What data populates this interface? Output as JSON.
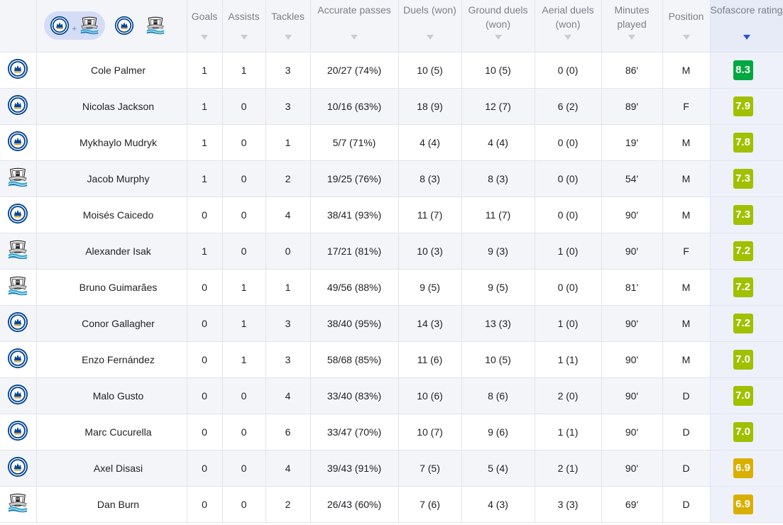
{
  "header": {
    "columns": [
      {
        "key": "goals",
        "label": "Goals"
      },
      {
        "key": "assists",
        "label": "Assists"
      },
      {
        "key": "tackles",
        "label": "Tackles"
      },
      {
        "key": "accurate_passes",
        "label": "Accurate passes"
      },
      {
        "key": "duels_won",
        "label": "Duels (won)"
      },
      {
        "key": "ground_duels_won",
        "label": "Ground duels (won)"
      },
      {
        "key": "aerial_duels_won",
        "label": "Aerial duels (won)"
      },
      {
        "key": "minutes_played",
        "label": "Minutes played"
      },
      {
        "key": "position",
        "label": "Position"
      },
      {
        "key": "rating",
        "label": "Sofascore rating"
      }
    ],
    "filter": {
      "plus": "+"
    }
  },
  "crests": {
    "chelsea": {
      "icon": "chelsea-crest-icon",
      "primary": "#034694"
    },
    "newcastle": {
      "icon": "newcastle-crest-icon",
      "primary": "#241f20"
    }
  },
  "rating_colors": {
    "excellent": "#00a83f",
    "very_good": "#a0c000",
    "good": "#d9af00"
  },
  "players": [
    {
      "team": "chelsea",
      "name": "Cole Palmer",
      "goals": "1",
      "assists": "1",
      "tackles": "3",
      "accurate_passes": "20/27 (74%)",
      "duels_won": "10 (5)",
      "ground_duels_won": "10 (5)",
      "aerial_duels_won": "0 (0)",
      "minutes_played": "86'",
      "position": "M",
      "rating": "8.3",
      "rating_level": "excellent"
    },
    {
      "team": "chelsea",
      "name": "Nicolas Jackson",
      "goals": "1",
      "assists": "0",
      "tackles": "3",
      "accurate_passes": "10/16 (63%)",
      "duels_won": "18 (9)",
      "ground_duels_won": "12 (7)",
      "aerial_duels_won": "6 (2)",
      "minutes_played": "89'",
      "position": "F",
      "rating": "7.9",
      "rating_level": "very_good"
    },
    {
      "team": "chelsea",
      "name": "Mykhaylo Mudryk",
      "goals": "1",
      "assists": "0",
      "tackles": "1",
      "accurate_passes": "5/7 (71%)",
      "duels_won": "4 (4)",
      "ground_duels_won": "4 (4)",
      "aerial_duels_won": "0 (0)",
      "minutes_played": "19'",
      "position": "M",
      "rating": "7.8",
      "rating_level": "very_good"
    },
    {
      "team": "newcastle",
      "name": "Jacob Murphy",
      "goals": "1",
      "assists": "0",
      "tackles": "2",
      "accurate_passes": "19/25 (76%)",
      "duels_won": "8 (3)",
      "ground_duels_won": "8 (3)",
      "aerial_duels_won": "0 (0)",
      "minutes_played": "54'",
      "position": "M",
      "rating": "7.3",
      "rating_level": "very_good"
    },
    {
      "team": "chelsea",
      "name": "Moisés Caicedo",
      "goals": "0",
      "assists": "0",
      "tackles": "4",
      "accurate_passes": "38/41 (93%)",
      "duels_won": "11 (7)",
      "ground_duels_won": "11 (7)",
      "aerial_duels_won": "0 (0)",
      "minutes_played": "90'",
      "position": "M",
      "rating": "7.3",
      "rating_level": "very_good"
    },
    {
      "team": "newcastle",
      "name": "Alexander Isak",
      "goals": "1",
      "assists": "0",
      "tackles": "0",
      "accurate_passes": "17/21 (81%)",
      "duels_won": "10 (3)",
      "ground_duels_won": "9 (3)",
      "aerial_duels_won": "1 (0)",
      "minutes_played": "90'",
      "position": "F",
      "rating": "7.2",
      "rating_level": "very_good"
    },
    {
      "team": "newcastle",
      "name": "Bruno Guimarães",
      "goals": "0",
      "assists": "1",
      "tackles": "1",
      "accurate_passes": "49/56 (88%)",
      "duels_won": "9 (5)",
      "ground_duels_won": "9 (5)",
      "aerial_duels_won": "0 (0)",
      "minutes_played": "81'",
      "position": "M",
      "rating": "7.2",
      "rating_level": "very_good"
    },
    {
      "team": "chelsea",
      "name": "Conor Gallagher",
      "goals": "0",
      "assists": "1",
      "tackles": "3",
      "accurate_passes": "38/40 (95%)",
      "duels_won": "14 (3)",
      "ground_duels_won": "13 (3)",
      "aerial_duels_won": "1 (0)",
      "minutes_played": "90'",
      "position": "M",
      "rating": "7.2",
      "rating_level": "very_good"
    },
    {
      "team": "chelsea",
      "name": "Enzo Fernández",
      "goals": "0",
      "assists": "1",
      "tackles": "3",
      "accurate_passes": "58/68 (85%)",
      "duels_won": "11 (6)",
      "ground_duels_won": "10 (5)",
      "aerial_duels_won": "1 (1)",
      "minutes_played": "90'",
      "position": "M",
      "rating": "7.0",
      "rating_level": "very_good"
    },
    {
      "team": "chelsea",
      "name": "Malo Gusto",
      "goals": "0",
      "assists": "0",
      "tackles": "4",
      "accurate_passes": "33/40 (83%)",
      "duels_won": "10 (6)",
      "ground_duels_won": "8 (6)",
      "aerial_duels_won": "2 (0)",
      "minutes_played": "90'",
      "position": "D",
      "rating": "7.0",
      "rating_level": "very_good"
    },
    {
      "team": "chelsea",
      "name": "Marc Cucurella",
      "goals": "0",
      "assists": "0",
      "tackles": "6",
      "accurate_passes": "33/47 (70%)",
      "duels_won": "10 (7)",
      "ground_duels_won": "9 (6)",
      "aerial_duels_won": "1 (1)",
      "minutes_played": "90'",
      "position": "D",
      "rating": "7.0",
      "rating_level": "very_good"
    },
    {
      "team": "chelsea",
      "name": "Axel Disasi",
      "goals": "0",
      "assists": "0",
      "tackles": "4",
      "accurate_passes": "39/43 (91%)",
      "duels_won": "7 (5)",
      "ground_duels_won": "5 (4)",
      "aerial_duels_won": "2 (1)",
      "minutes_played": "90'",
      "position": "D",
      "rating": "6.9",
      "rating_level": "good"
    },
    {
      "team": "newcastle",
      "name": "Dan Burn",
      "goals": "0",
      "assists": "0",
      "tackles": "2",
      "accurate_passes": "26/43 (60%)",
      "duels_won": "7 (6)",
      "ground_duels_won": "4 (3)",
      "aerial_duels_won": "3 (3)",
      "minutes_played": "69'",
      "position": "D",
      "rating": "6.9",
      "rating_level": "good"
    }
  ]
}
